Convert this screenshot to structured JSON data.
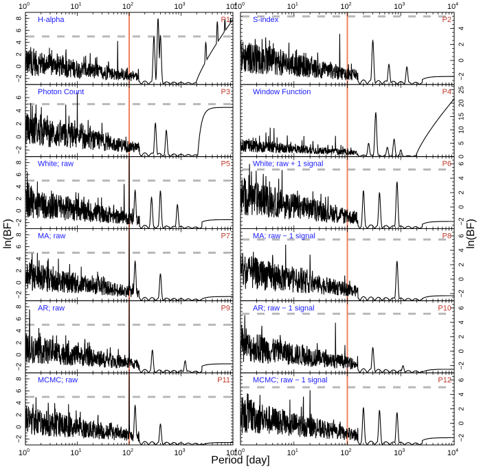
{
  "figure": {
    "xlabel": "Period [day]",
    "ylabel_left": "ln(BF)",
    "ylabel_right": "ln(BF)",
    "x_tick_labels": [
      "10^0",
      "10^1",
      "10^2",
      "10^3",
      "10^4"
    ],
    "reference_period_line": 100,
    "colors": {
      "panel_label": "#1a1aff",
      "panel_id": "#c0392b",
      "ref_line": "#f08060",
      "threshold": "#b8b8b8",
      "series": "#000000"
    }
  },
  "chart_data": [
    {
      "id": "P1",
      "title": "H-alpha",
      "type": "line",
      "xscale": "log",
      "xlim": [
        1,
        10000
      ],
      "ylim": [
        -3,
        9
      ],
      "yticks": [
        -2,
        0,
        2,
        4,
        6,
        8
      ],
      "threshold": 5,
      "axis_side": "left",
      "peaks": [
        [
          1.05,
          3.0
        ],
        [
          2.5,
          1.4
        ],
        [
          6,
          1.5
        ],
        [
          40,
          2.0
        ],
        [
          60,
          4.3
        ],
        [
          300,
          5.0
        ],
        [
          360,
          8.0
        ],
        [
          400,
          5.2
        ],
        [
          3000,
          4.0
        ],
        [
          5000,
          7.5
        ],
        [
          7000,
          7.8
        ],
        [
          9000,
          8.1
        ]
      ],
      "noise_level": -0.5,
      "tail": "rising"
    },
    {
      "id": "P2",
      "title": "S-index",
      "type": "line",
      "xscale": "log",
      "xlim": [
        1,
        10000
      ],
      "ylim": [
        -3,
        6
      ],
      "yticks": [
        -2,
        0,
        2,
        4
      ],
      "threshold": 5.5,
      "axis_side": "right",
      "peaks": [
        [
          1.3,
          2.0
        ],
        [
          3,
          1.8
        ],
        [
          72,
          3.4
        ],
        [
          300,
          2.5
        ],
        [
          600,
          -0.5
        ],
        [
          1300,
          -0.8
        ]
      ],
      "noise_level": -0.8,
      "tail": "flat"
    },
    {
      "id": "P3",
      "title": "Photon Count",
      "type": "line",
      "xscale": "log",
      "xlim": [
        1,
        10000
      ],
      "ylim": [
        -3,
        8
      ],
      "yticks": [
        -2,
        0,
        2,
        4,
        6
      ],
      "threshold": 5,
      "axis_side": "left",
      "peaks": [
        [
          1.6,
          5.0
        ],
        [
          6,
          5.0
        ],
        [
          10,
          6.8
        ],
        [
          30,
          3.0
        ],
        [
          320,
          2.1
        ],
        [
          520,
          1.0
        ]
      ],
      "noise_level": 0.0,
      "tail": "step_to_4.5"
    },
    {
      "id": "P4",
      "title": "Window Function",
      "type": "line",
      "xscale": "log",
      "xlim": [
        1,
        10000
      ],
      "ylim": [
        0,
        27
      ],
      "yticks": [
        0,
        5,
        10,
        15,
        20,
        25
      ],
      "threshold": null,
      "axis_side": "right",
      "peaks": [
        [
          3,
          10.5
        ],
        [
          60,
          7.8
        ],
        [
          250,
          5.0
        ],
        [
          340,
          16.5
        ],
        [
          560,
          3.5
        ],
        [
          750,
          6.5
        ],
        [
          1000,
          2.5
        ],
        [
          10000,
          22.0
        ]
      ],
      "noise_level": 3.0,
      "tail": "rising"
    },
    {
      "id": "P5",
      "title": "White; raw",
      "type": "line",
      "xscale": "log",
      "xlim": [
        1,
        10000
      ],
      "ylim": [
        -3,
        9
      ],
      "yticks": [
        -2,
        0,
        2,
        4,
        6,
        8
      ],
      "threshold": 5,
      "axis_side": "left",
      "peaks": [
        [
          1.7,
          5.1
        ],
        [
          80,
          4.8
        ],
        [
          100,
          9.0
        ],
        [
          130,
          3.4
        ],
        [
          270,
          2.2
        ],
        [
          400,
          3.3
        ],
        [
          850,
          1.0
        ]
      ],
      "noise_level": 0.5,
      "tail": "flat_-1.5"
    },
    {
      "id": "P6",
      "title": "White; raw + 1 signal",
      "type": "line",
      "xscale": "log",
      "xlim": [
        1,
        10000
      ],
      "ylim": [
        -3,
        7
      ],
      "yticks": [
        -2,
        0,
        2,
        4,
        6
      ],
      "threshold": 5.2,
      "axis_side": "right",
      "peaks": [
        [
          1.6,
          5.0
        ],
        [
          3,
          5.5
        ],
        [
          6,
          5.2
        ],
        [
          200,
          2.3
        ],
        [
          400,
          2.0
        ],
        [
          850,
          3.5
        ]
      ],
      "noise_level": 0.5,
      "tail": "flat_-2"
    },
    {
      "id": "P7",
      "title": "MA; raw",
      "type": "line",
      "xscale": "log",
      "xlim": [
        1,
        10000
      ],
      "ylim": [
        -3,
        9
      ],
      "yticks": [
        -2,
        0,
        2,
        4,
        6,
        8
      ],
      "threshold": 5,
      "axis_side": "left",
      "peaks": [
        [
          1.3,
          5.1
        ],
        [
          1.7,
          5.2
        ],
        [
          100,
          9.0
        ],
        [
          130,
          3.6
        ],
        [
          400,
          1.5
        ]
      ],
      "noise_level": 0.0,
      "tail": "flat_-2.3"
    },
    {
      "id": "P8",
      "title": "MA; raw − 1 signal",
      "type": "line",
      "xscale": "log",
      "xlim": [
        1,
        10000
      ],
      "ylim": [
        -3,
        7
      ],
      "yticks": [
        -2,
        0,
        2,
        4,
        6
      ],
      "threshold": 5.5,
      "axis_side": "right",
      "peaks": [
        [
          1.1,
          4.5
        ],
        [
          4,
          5.3
        ],
        [
          7,
          5.0
        ],
        [
          20,
          4.0
        ],
        [
          850,
          2.5
        ]
      ],
      "noise_level": 0.0,
      "tail": "flat_-2.3"
    },
    {
      "id": "P9",
      "title": "AR; raw",
      "type": "line",
      "xscale": "log",
      "xlim": [
        1,
        10000
      ],
      "ylim": [
        -3,
        9
      ],
      "yticks": [
        -2,
        0,
        2,
        4,
        6,
        8
      ],
      "threshold": 5,
      "axis_side": "left",
      "peaks": [
        [
          1.2,
          8.0
        ],
        [
          1.05,
          3.6
        ],
        [
          6,
          3.3
        ],
        [
          100,
          9.0
        ],
        [
          280,
          0.8
        ],
        [
          1200,
          -1.0
        ]
      ],
      "noise_level": 0.0,
      "tail": "flat_-1.5"
    },
    {
      "id": "P10",
      "title": "AR; raw − 1 signal",
      "type": "line",
      "xscale": "log",
      "xlim": [
        1,
        10000
      ],
      "ylim": [
        -3,
        7
      ],
      "yticks": [
        -2,
        0,
        2,
        4,
        6
      ],
      "threshold": 5.2,
      "axis_side": "right",
      "peaks": [
        [
          1.1,
          4.0
        ],
        [
          2.5,
          5.5
        ],
        [
          60,
          4.0
        ],
        [
          90,
          1.3
        ],
        [
          300,
          0.5
        ],
        [
          1100,
          -2.0
        ]
      ],
      "noise_level": -0.5,
      "tail": "flat_-2.5"
    },
    {
      "id": "P11",
      "title": "MCMC; raw",
      "type": "line",
      "xscale": "log",
      "xlim": [
        1,
        10000
      ],
      "ylim": [
        -3,
        9
      ],
      "yticks": [
        -2,
        0,
        2,
        4,
        6,
        8
      ],
      "threshold": 5,
      "axis_side": "left",
      "peaks": [
        [
          1.6,
          5.0
        ],
        [
          25,
          3.5
        ],
        [
          100,
          9.0
        ],
        [
          130,
          3.6
        ],
        [
          400,
          0.5
        ]
      ],
      "noise_level": 0.0,
      "tail": "flat_-2.6"
    },
    {
      "id": "P12",
      "title": "MCMC; raw − 1 signal",
      "type": "line",
      "xscale": "log",
      "xlim": [
        1,
        10000
      ],
      "ylim": [
        -3,
        7
      ],
      "yticks": [
        -2,
        0,
        2,
        4,
        6
      ],
      "threshold": 5.0,
      "axis_side": "right",
      "peaks": [
        [
          1.1,
          4.5
        ],
        [
          15,
          5.0
        ],
        [
          20,
          5.3
        ],
        [
          200,
          2.2
        ],
        [
          400,
          1.8
        ],
        [
          850,
          1.5
        ]
      ],
      "noise_level": 0.0,
      "tail": "flat_-2"
    }
  ]
}
